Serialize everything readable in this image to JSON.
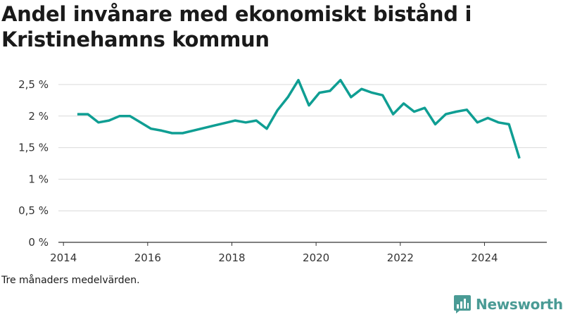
{
  "title": "Andel invånare med ekonomiskt bistånd i Kristinehamns kommun",
  "note": "Tre månaders medelvärden.",
  "brand": {
    "name": "Newsworthy",
    "icon": "newsworthy-logo-icon",
    "color": "#4a9b95"
  },
  "chart_data": {
    "type": "line",
    "title": "Andel invånare med ekonomiskt bistånd i Kristinehamns kommun",
    "xlabel": "",
    "ylabel": "",
    "xlim": [
      2013.88,
      2025.48
    ],
    "ylim": [
      0,
      2.5
    ],
    "y_ticks": [
      0,
      0.5,
      1,
      1.5,
      2,
      2.5
    ],
    "y_tick_labels": [
      "0 %",
      "0,5 %",
      "1 %",
      "1,5 %",
      "2 %",
      "2,5 %"
    ],
    "x_ticks": [
      2014,
      2016,
      2018,
      2020,
      2022,
      2024
    ],
    "x_tick_labels": [
      "2014",
      "2016",
      "2018",
      "2020",
      "2022",
      "2024"
    ],
    "grid": "horizontal",
    "line_color": "#0f9e93",
    "series": [
      {
        "x": [
          2014.33,
          2014.58,
          2014.83,
          2015.08,
          2015.33,
          2015.58,
          2015.83,
          2016.08,
          2016.33,
          2016.58,
          2016.83,
          2017.08,
          2017.33,
          2017.58,
          2017.83,
          2018.08,
          2018.33,
          2018.58,
          2018.83,
          2019.08,
          2019.33,
          2019.58,
          2019.83,
          2020.08,
          2020.33,
          2020.58,
          2020.83,
          2021.08,
          2021.33,
          2021.58,
          2021.83,
          2022.08,
          2022.33,
          2022.58,
          2022.83,
          2023.08,
          2023.33,
          2023.58,
          2023.83,
          2024.08,
          2024.33,
          2024.58,
          2024.83
        ],
        "values": [
          2.03,
          2.03,
          1.9,
          1.93,
          2.0,
          2.0,
          1.9,
          1.8,
          1.77,
          1.73,
          1.73,
          1.77,
          1.81,
          1.85,
          1.89,
          1.93,
          1.9,
          1.93,
          1.8,
          2.09,
          2.3,
          2.57,
          2.17,
          2.37,
          2.4,
          2.57,
          2.3,
          2.43,
          2.37,
          2.33,
          2.03,
          2.2,
          2.07,
          2.13,
          1.87,
          2.03,
          2.07,
          2.1,
          1.9,
          1.97,
          1.9,
          1.87,
          1.33
        ]
      }
    ]
  }
}
